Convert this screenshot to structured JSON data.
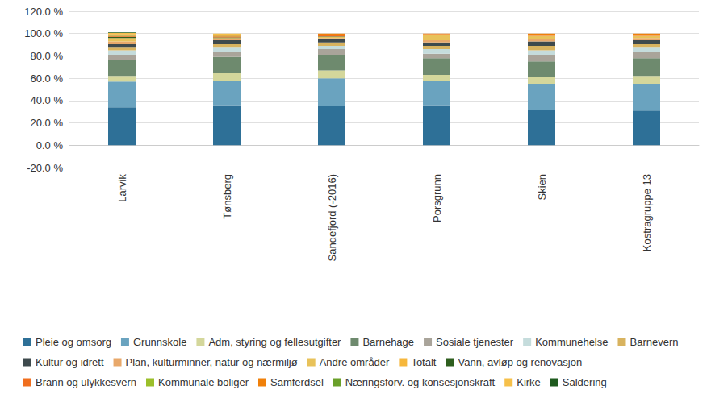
{
  "chart_data": {
    "type": "bar",
    "stacked": true,
    "grid": true,
    "legend": "bottom",
    "data_labels": false,
    "categories": [
      "Larvik",
      "Tønsberg",
      "Sandefjord (-2016)",
      "Porsgrunn",
      "Skien",
      "Kostragruppe 13"
    ],
    "ylim": [
      -20,
      120
    ],
    "yticks": [
      {
        "value": -20,
        "label": "-20.0 %"
      },
      {
        "value": 0,
        "label": "0.0 %"
      },
      {
        "value": 20,
        "label": "20.0 %"
      },
      {
        "value": 40,
        "label": "40.0 %"
      },
      {
        "value": 60,
        "label": "60.0 %"
      },
      {
        "value": 80,
        "label": "80.0 %"
      },
      {
        "value": 100,
        "label": "100.0 %"
      },
      {
        "value": 120,
        "label": "120.0 %"
      }
    ],
    "series": [
      {
        "name": "Pleie og omsorg",
        "color": "#2e7097",
        "values": [
          34,
          36,
          35,
          36,
          32,
          31
        ]
      },
      {
        "name": "Grunnskole",
        "color": "#6aa3bf",
        "values": [
          23,
          22,
          25,
          22,
          23,
          24
        ]
      },
      {
        "name": "Adm, styring og fellesutgifter",
        "color": "#d4d79b",
        "values": [
          5,
          7,
          7,
          5,
          6,
          7
        ]
      },
      {
        "name": "Barnehage",
        "color": "#6e8a6e",
        "values": [
          14,
          14,
          14,
          15,
          14,
          16
        ]
      },
      {
        "name": "Sosiale tjenester",
        "color": "#a9a49a",
        "values": [
          5,
          5,
          5,
          4,
          6,
          6
        ]
      },
      {
        "name": "Kommunehelse",
        "color": "#c5dcdc",
        "values": [
          4,
          4,
          3,
          4,
          4,
          4
        ]
      },
      {
        "name": "Barnevern",
        "color": "#d8b35f",
        "values": [
          3,
          3,
          3,
          3,
          4,
          3
        ]
      },
      {
        "name": "Kultur og idrett",
        "color": "#3e4a4d",
        "values": [
          3,
          3,
          3,
          3,
          4,
          3
        ]
      },
      {
        "name": "Plan, kulturminner, natur og nærmiljø",
        "color": "#e8a86a",
        "values": [
          2,
          1,
          1,
          2,
          2,
          2
        ]
      },
      {
        "name": "Andre områder",
        "color": "#e8c25a",
        "values": [
          3,
          1,
          1,
          5,
          3,
          2
        ]
      },
      {
        "name": "Totalt",
        "color": "#f6b73c",
        "values": [
          0,
          0,
          0,
          0,
          0,
          0
        ]
      },
      {
        "name": "Vann, avløp og renovasjon",
        "color": "#2e5e1e",
        "values": [
          1,
          0.5,
          0.5,
          0,
          0,
          0
        ]
      },
      {
        "name": "Brann og ulykkesvern",
        "color": "#f06e1e",
        "values": [
          1,
          1,
          1,
          0.5,
          1,
          1
        ]
      },
      {
        "name": "Kommunale boliger",
        "color": "#9bbf2a",
        "values": [
          0.5,
          0.5,
          0.5,
          0,
          0,
          0
        ]
      },
      {
        "name": "Samferdsel",
        "color": "#f0800a",
        "values": [
          1,
          1,
          1,
          0.5,
          1,
          1
        ]
      },
      {
        "name": "Næringsforv. og konsesjonskraft",
        "color": "#6aa02a",
        "values": [
          0,
          0,
          0,
          0,
          0,
          0
        ]
      },
      {
        "name": "Kirke",
        "color": "#f6c04a",
        "values": [
          1,
          1,
          0,
          0,
          0,
          0
        ]
      },
      {
        "name": "Saldering",
        "color": "#1e5a1e",
        "values": [
          0.5,
          0,
          0,
          0,
          0,
          0
        ]
      }
    ]
  }
}
